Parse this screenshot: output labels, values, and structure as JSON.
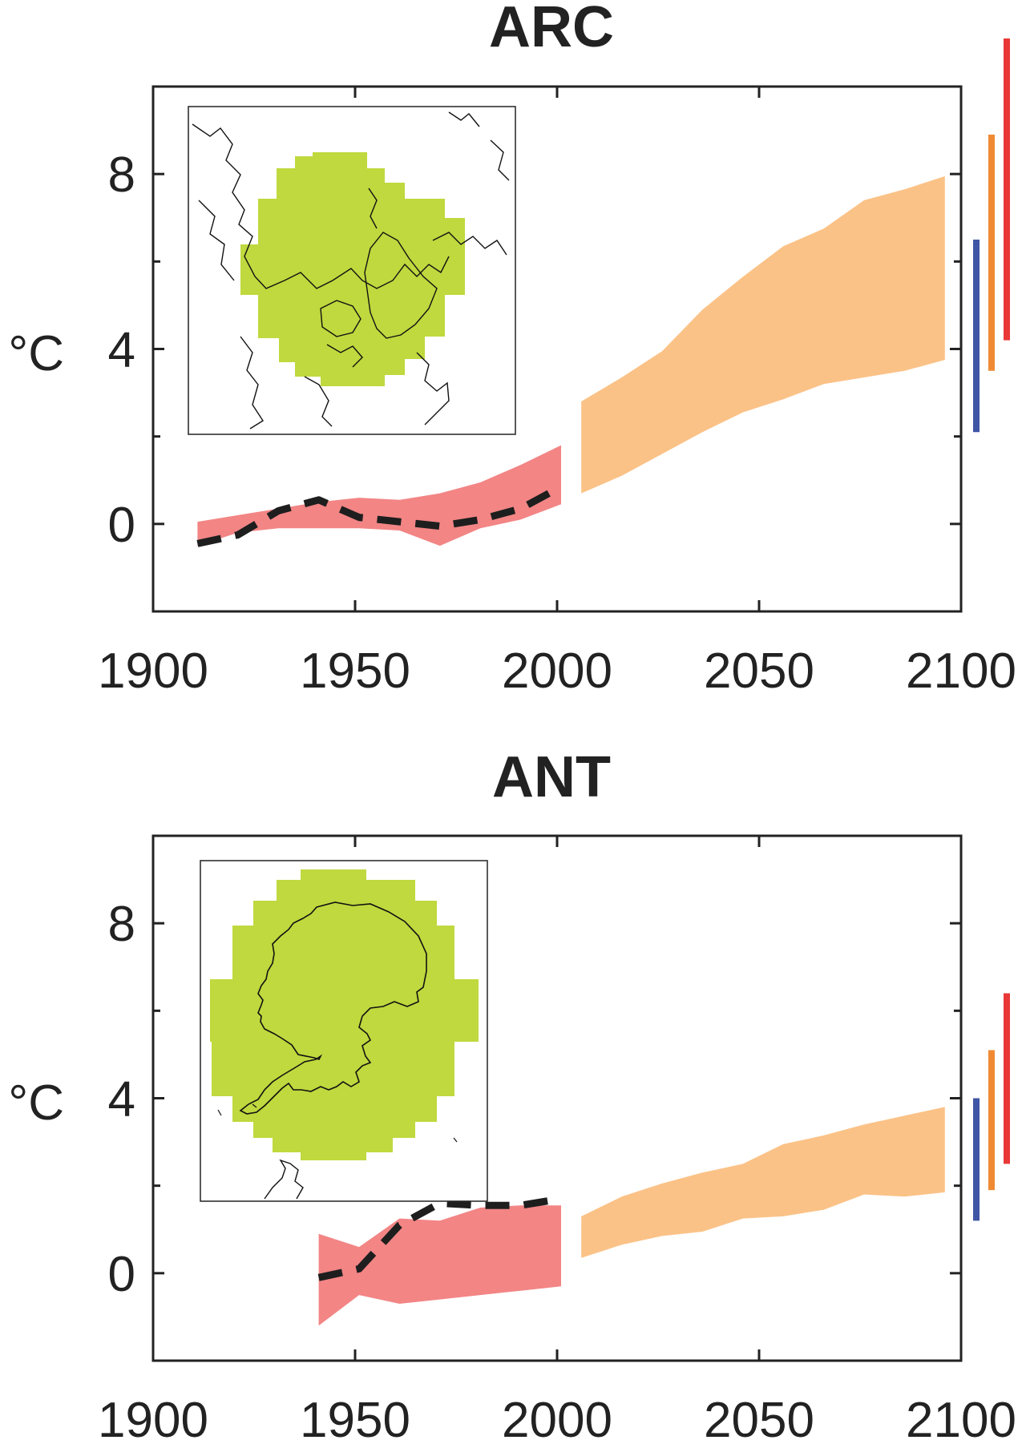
{
  "colors": {
    "historical_band": "#f38585",
    "projection_band": "#fbc287",
    "observed_line": "#1e1e1e",
    "region_fill": "#bfd93e",
    "bar_blue": "#3f55a5",
    "bar_orange": "#f08a33",
    "bar_red": "#e93838",
    "axis": "#222222"
  },
  "chart_data": [
    {
      "type": "area",
      "title": "ARC",
      "ylabel": "°C",
      "xlabel": "",
      "xlim": [
        1900,
        2100
      ],
      "ylim": [
        -2,
        10
      ],
      "xticks": [
        1900,
        1950,
        2000,
        2050,
        2100
      ],
      "yticks": [
        0,
        4,
        8
      ],
      "grid": false,
      "inset_map": "arctic-region-map",
      "historical_band": {
        "x": [
          1911,
          1921,
          1931,
          1941,
          1951,
          1961,
          1971,
          1981,
          1991,
          2001
        ],
        "lower": [
          -0.5,
          -0.2,
          -0.1,
          -0.1,
          -0.1,
          -0.15,
          -0.5,
          -0.1,
          0.1,
          0.45
        ],
        "upper": [
          0.05,
          0.2,
          0.35,
          0.5,
          0.6,
          0.55,
          0.7,
          0.95,
          1.35,
          1.8
        ]
      },
      "projection_band": {
        "x": [
          2006,
          2016,
          2026,
          2036,
          2046,
          2056,
          2066,
          2076,
          2086,
          2096
        ],
        "lower": [
          0.7,
          1.1,
          1.6,
          2.1,
          2.55,
          2.85,
          3.2,
          3.35,
          3.5,
          3.75
        ],
        "upper": [
          2.8,
          3.35,
          3.95,
          4.9,
          5.65,
          6.35,
          6.75,
          7.4,
          7.65,
          7.95
        ]
      },
      "observed": {
        "x": [
          1911,
          1921,
          1931,
          1941,
          1951,
          1961,
          1971,
          1981,
          1991,
          2001
        ],
        "y": [
          -0.45,
          -0.25,
          0.3,
          0.55,
          0.15,
          0.05,
          -0.05,
          0.1,
          0.35,
          0.85
        ]
      },
      "end_ranges": [
        {
          "color": "bar_blue",
          "low": 2.1,
          "high": 6.5
        },
        {
          "color": "bar_orange",
          "low": 3.5,
          "high": 8.9
        },
        {
          "color": "bar_red",
          "low": 4.2,
          "high": 11.1
        }
      ]
    },
    {
      "type": "area",
      "title": "ANT",
      "ylabel": "°C",
      "xlabel": "",
      "xlim": [
        1900,
        2100
      ],
      "ylim": [
        -2,
        10
      ],
      "xticks": [
        1900,
        1950,
        2000,
        2050,
        2100
      ],
      "yticks": [
        0,
        4,
        8
      ],
      "grid": false,
      "inset_map": "antarctic-region-map",
      "historical_band": {
        "x": [
          1941,
          1951,
          1961,
          1971,
          1981,
          1991,
          2001
        ],
        "lower": [
          -1.2,
          -0.5,
          -0.7,
          -0.6,
          -0.5,
          -0.4,
          -0.3
        ],
        "upper": [
          0.9,
          0.6,
          1.25,
          1.2,
          1.5,
          1.55,
          1.55
        ]
      },
      "projection_band": {
        "x": [
          2006,
          2016,
          2026,
          2036,
          2046,
          2056,
          2066,
          2076,
          2086,
          2096
        ],
        "lower": [
          0.35,
          0.65,
          0.85,
          0.95,
          1.25,
          1.3,
          1.45,
          1.8,
          1.75,
          1.85
        ],
        "upper": [
          1.3,
          1.75,
          2.05,
          2.3,
          2.5,
          2.95,
          3.15,
          3.4,
          3.6,
          3.8
        ]
      },
      "observed": {
        "x": [
          1941,
          1951,
          1961,
          1971,
          1981,
          1991,
          2001
        ],
        "y": [
          -0.1,
          0.1,
          1.1,
          1.6,
          1.55,
          1.55,
          1.7
        ]
      },
      "end_ranges": [
        {
          "color": "bar_blue",
          "low": 1.2,
          "high": 4.0
        },
        {
          "color": "bar_orange",
          "low": 1.9,
          "high": 5.1
        },
        {
          "color": "bar_red",
          "low": 2.5,
          "high": 6.4
        }
      ]
    }
  ]
}
